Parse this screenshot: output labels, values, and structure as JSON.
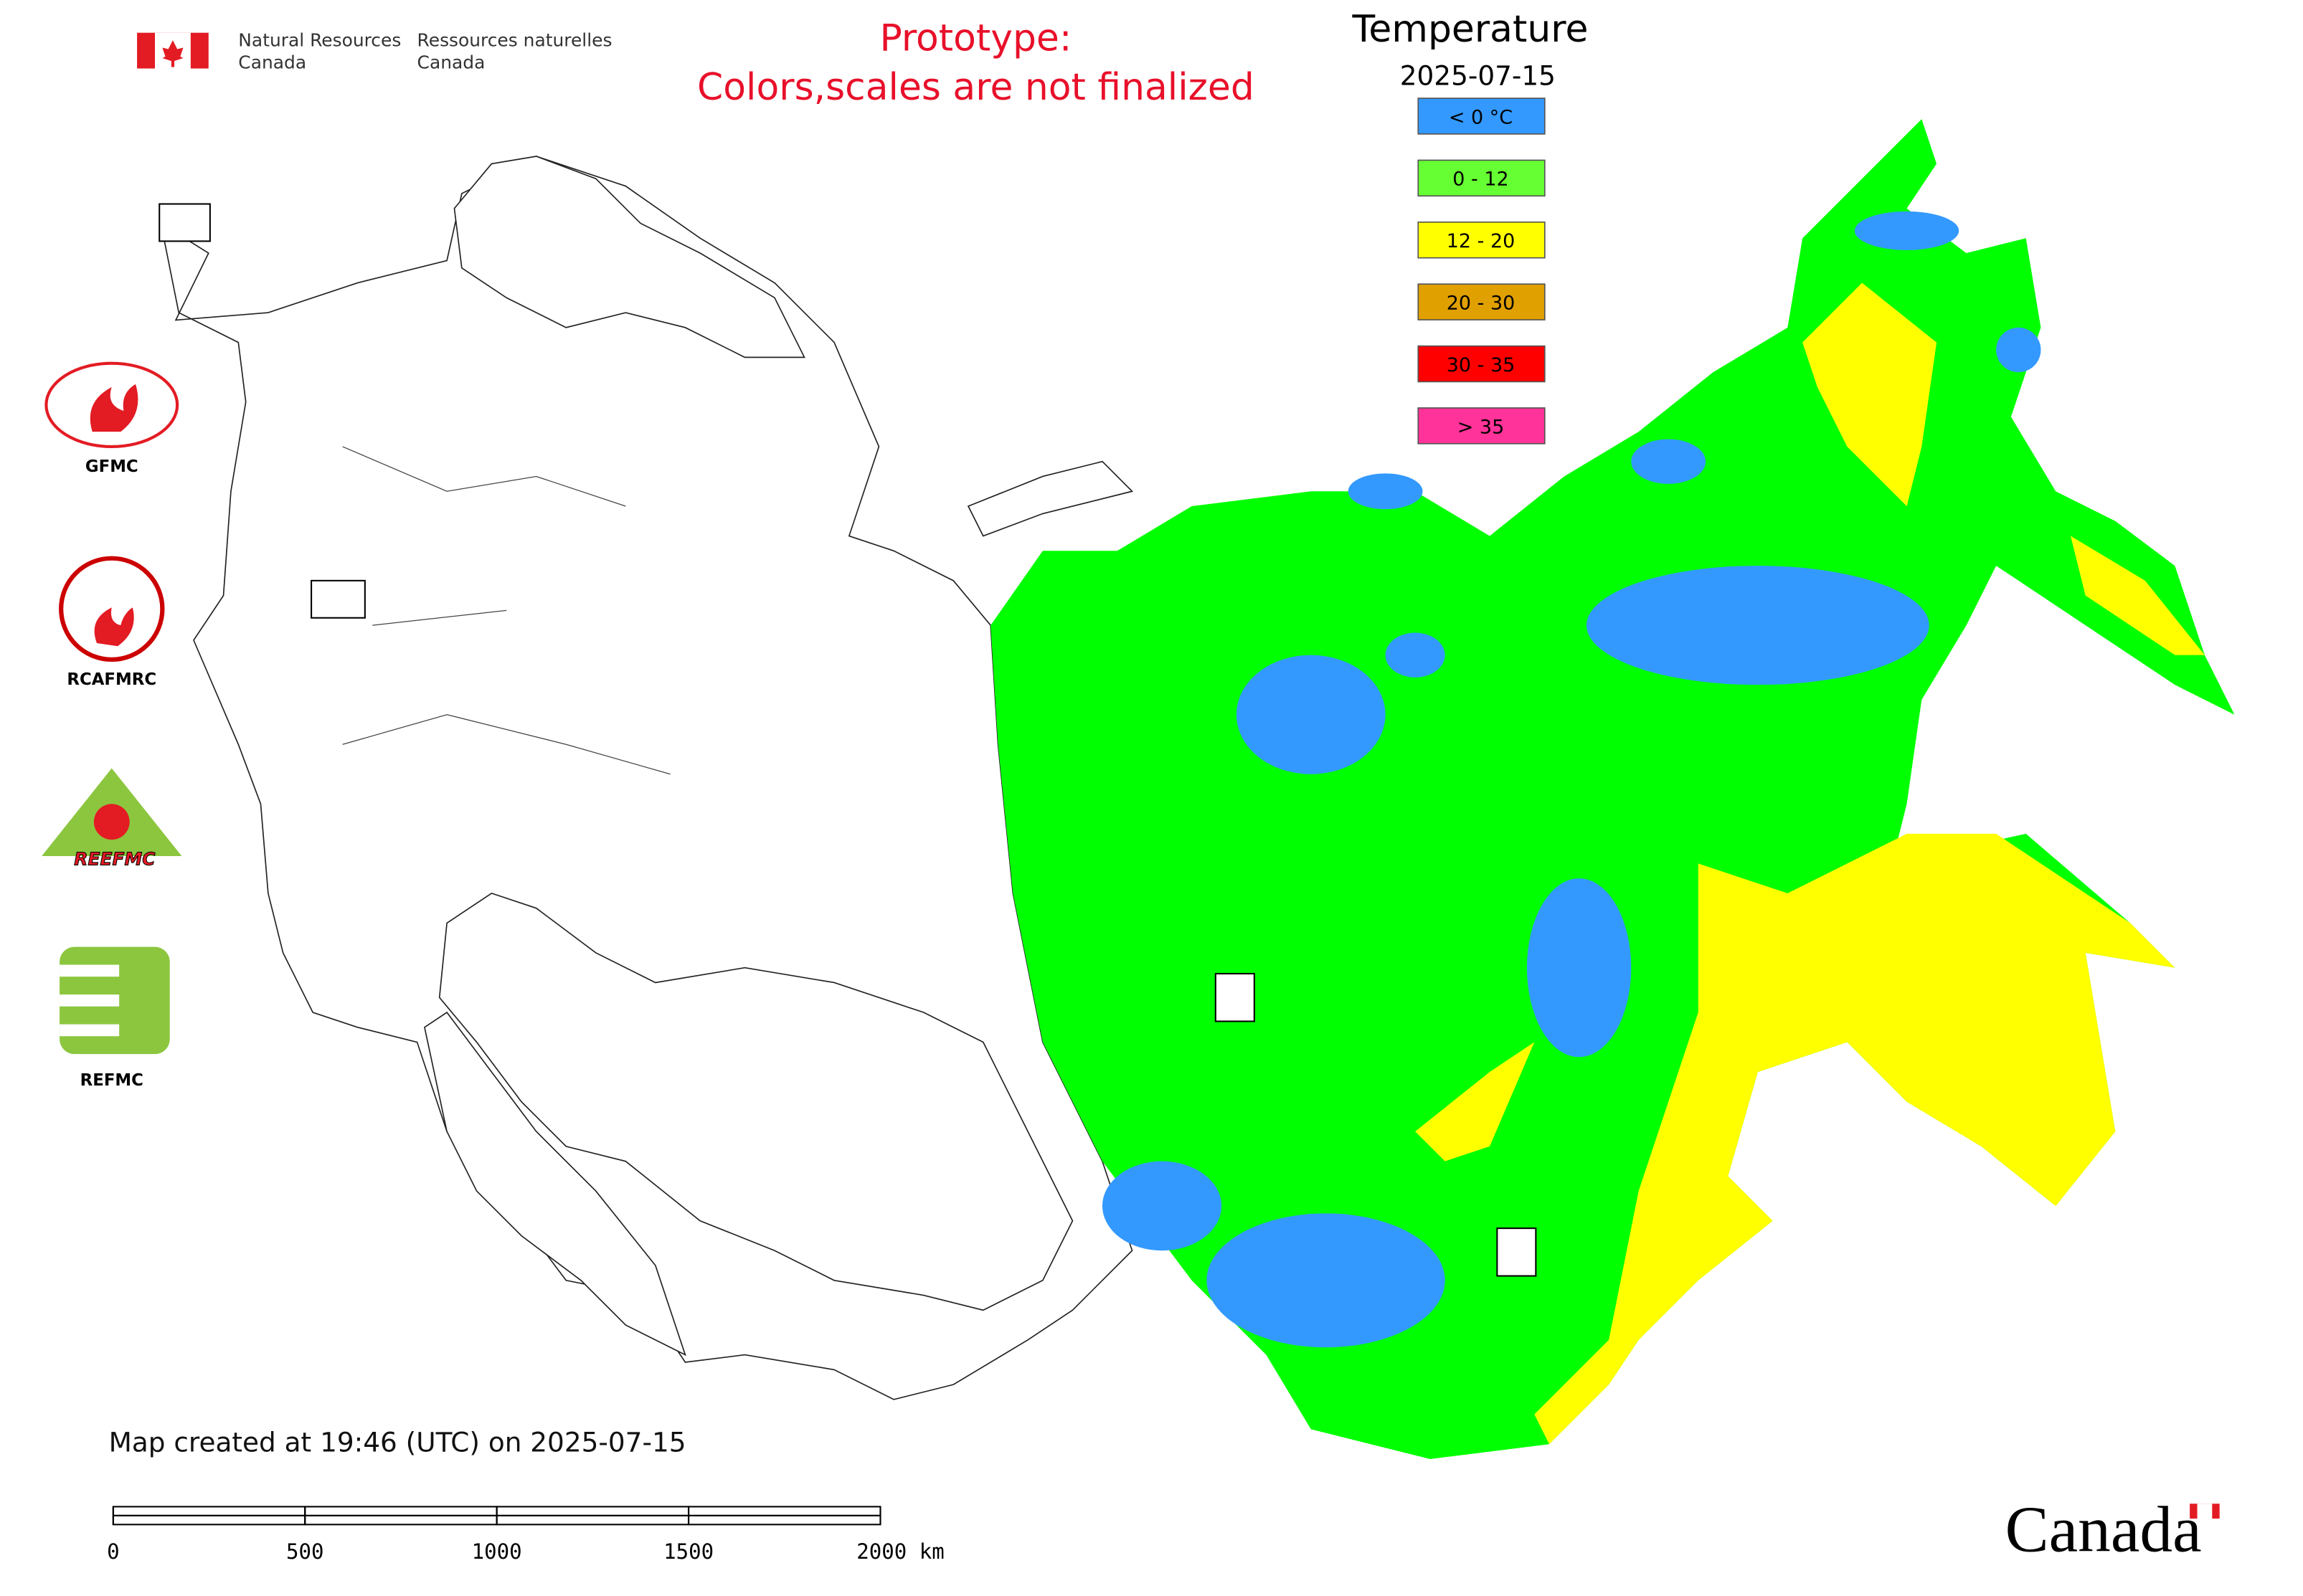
{
  "header": {
    "org_en": [
      "Natural Resources",
      "Canada"
    ],
    "org_fr": [
      "Ressources naturelles",
      "Canada"
    ],
    "notice": [
      "Prototype:",
      "Colors,scales are not finalized"
    ]
  },
  "legend": {
    "title": "Temperature",
    "date": "2025-07-15",
    "items": [
      {
        "label": "< 0 °C",
        "color": "#3399ff"
      },
      {
        "label": "0 - 12",
        "color": "#66ff33"
      },
      {
        "label": "12 - 20",
        "color": "#ffff00"
      },
      {
        "label": "20 - 30",
        "color": "#e0a000"
      },
      {
        "label": "30 - 35",
        "color": "#ff0000"
      },
      {
        "label": "> 35",
        "color": "#ff3399"
      }
    ]
  },
  "logos": [
    {
      "label": "GFMC"
    },
    {
      "label": "RCAFMRC"
    },
    {
      "label": "REEFMC"
    },
    {
      "label": "REFMC"
    }
  ],
  "footer": {
    "created": "Map created at 19:46 (UTC) on 2025-07-15",
    "wordmark": "Canada"
  },
  "scale_bar": {
    "ticks": [
      0,
      500,
      1000,
      1500,
      {
        "value": 2000,
        "label": "2000 km"
      }
    ]
  }
}
